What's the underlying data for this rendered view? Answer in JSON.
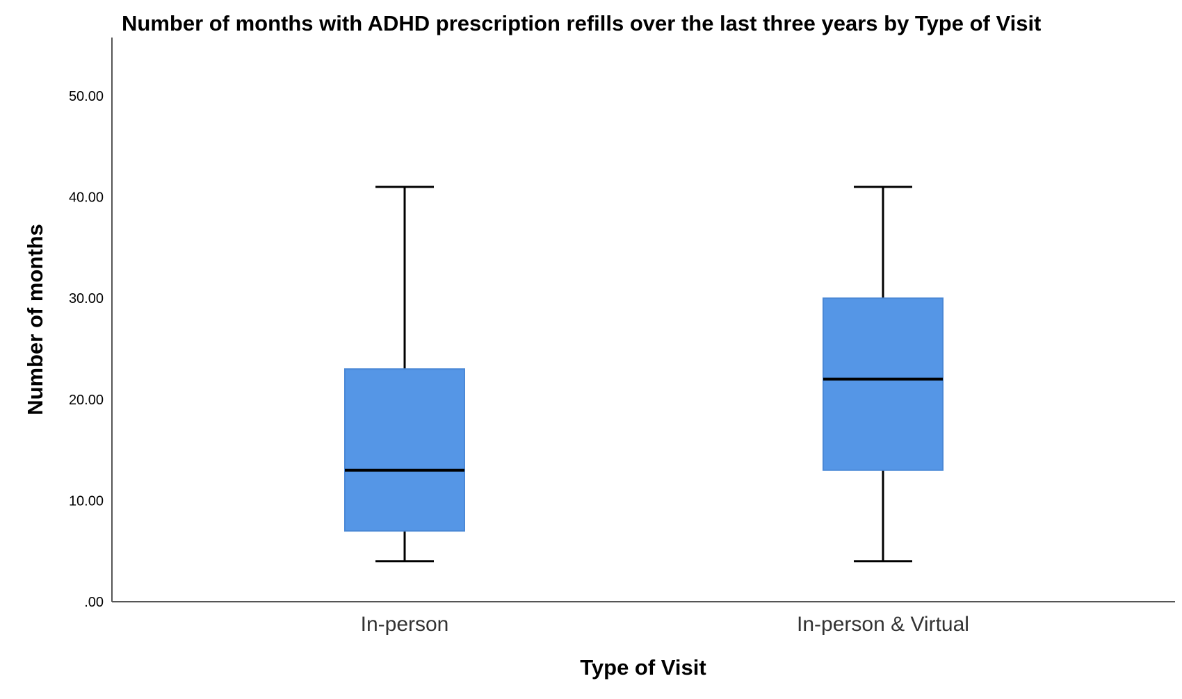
{
  "chart_data": {
    "type": "boxplot",
    "title": "Number of months with ADHD prescription refills over the last three years by Type of Visit",
    "xlabel": "Type of Visit",
    "ylabel": "Number of months",
    "ylim": [
      0,
      55
    ],
    "y_ticks": [
      0,
      10,
      20,
      30,
      40,
      50
    ],
    "y_tick_labels": [
      ".00",
      "10.00",
      "20.00",
      "30.00",
      "40.00",
      "50.00"
    ],
    "categories": [
      "In-person",
      "In-person & Virtual"
    ],
    "boxes": [
      {
        "category": "In-person",
        "whisker_low": 4,
        "q1": 7,
        "median": 13,
        "q3": 23,
        "whisker_high": 41
      },
      {
        "category": "In-person & Virtual",
        "whisker_low": 4,
        "q1": 13,
        "median": 22,
        "q3": 30,
        "whisker_high": 41
      }
    ],
    "grid": false,
    "legend": "none",
    "box_color": "#5596E6",
    "median_color": "#000000",
    "whisker_color": "#000000"
  }
}
